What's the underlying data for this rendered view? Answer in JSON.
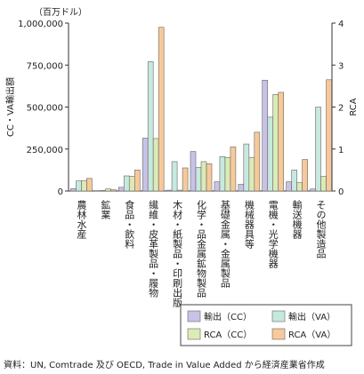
{
  "chart_data": {
    "type": "bar",
    "unit_label": "（百万ドル）",
    "ylabel_left": "CC・VA輸出額",
    "ylabel_right": "RCA",
    "ylim_left": [
      0,
      1000000
    ],
    "ylim_right": [
      0,
      4
    ],
    "left_ticks": [
      "0",
      "250,000",
      "500,000",
      "750,000",
      "1,000,000"
    ],
    "left_tick_values": [
      0,
      250000,
      500000,
      750000,
      1000000
    ],
    "right_ticks": [
      "0",
      "1",
      "2",
      "3",
      "4"
    ],
    "right_tick_values": [
      0,
      1,
      2,
      3,
      4
    ],
    "categories": [
      "農林水産",
      "鉱業",
      "食品・飲料",
      "繊維・皮革製品・履物",
      "木材・紙製品・印刷出版",
      "化学・品金属鉱物製品",
      "基礎金属・金属製品",
      "機械器具等",
      "電機・光学機器",
      "輸送機器",
      "その他製造品"
    ],
    "series": [
      {
        "name": "輸出（CC）",
        "axis": "left",
        "color": "#c9c2e6",
        "values": [
          14000,
          2000,
          22000,
          315000,
          5000,
          235000,
          55000,
          40000,
          660000,
          55000,
          12000
        ]
      },
      {
        "name": "輸出（VA）",
        "axis": "left",
        "color": "#c7e8df",
        "values": [
          60000,
          3000,
          90000,
          770000,
          175000,
          140000,
          205000,
          280000,
          440000,
          125000,
          500000
        ]
      },
      {
        "name": "RCA（CC）",
        "axis": "right",
        "color": "#dcebb5",
        "values": [
          0.25,
          0.05,
          0.35,
          1.25,
          0.02,
          0.7,
          0.8,
          0.8,
          2.3,
          0.2,
          0.35
        ]
      },
      {
        "name": "RCA（VA）",
        "axis": "right",
        "color": "#f7c99a",
        "values": [
          0.3,
          0.03,
          0.5,
          3.9,
          0.55,
          0.65,
          1.05,
          1.4,
          2.35,
          0.75,
          2.65
        ]
      }
    ],
    "legend_position": "bottom-right",
    "grid": false
  },
  "source_note": "資料：UN, Comtrade 及び OECD, Trade in Value Added から経済産業省作成"
}
